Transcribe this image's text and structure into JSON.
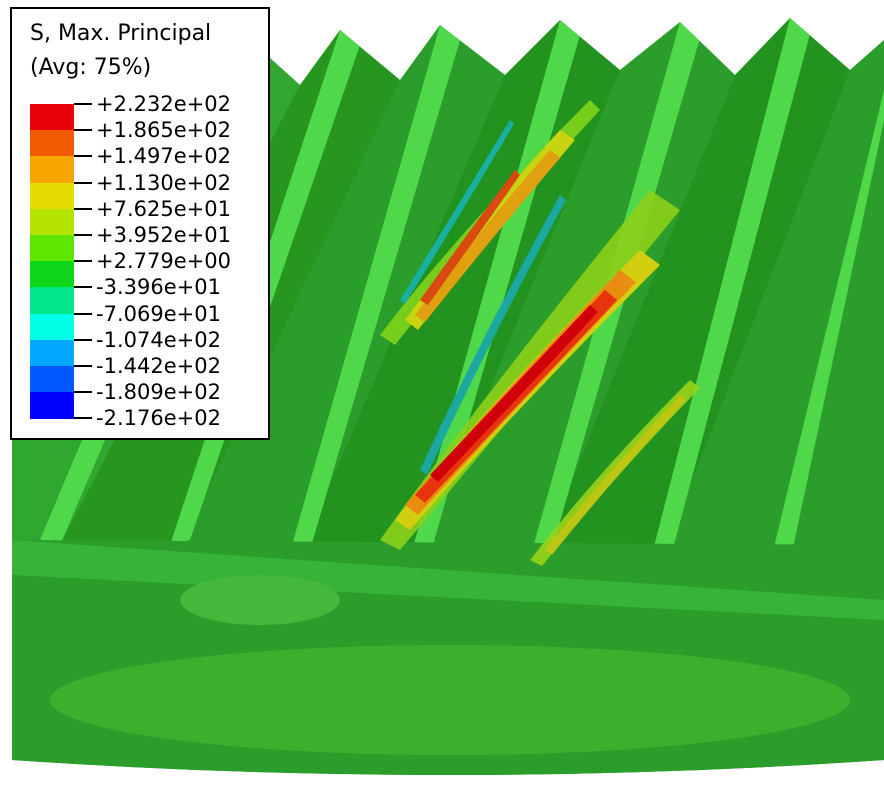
{
  "legend": {
    "title_line1": "S, Max. Principal",
    "title_line2": "(Avg: 75%)",
    "ticks": [
      "+2.232e+02",
      "+1.865e+02",
      "+1.497e+02",
      "+1.130e+02",
      "+7.625e+01",
      "+3.952e+01",
      "+2.779e+00",
      "-3.396e+01",
      "-7.069e+01",
      "-1.074e+02",
      "-1.442e+02",
      "-1.809e+02",
      "-2.176e+02"
    ],
    "colors": [
      "#e8000b",
      "#f25a00",
      "#f7a600",
      "#e4dc00",
      "#b2e400",
      "#5ee600",
      "#10d61a",
      "#00e68a",
      "#00ffe6",
      "#00a8ff",
      "#0058ff",
      "#0000ff"
    ]
  }
}
